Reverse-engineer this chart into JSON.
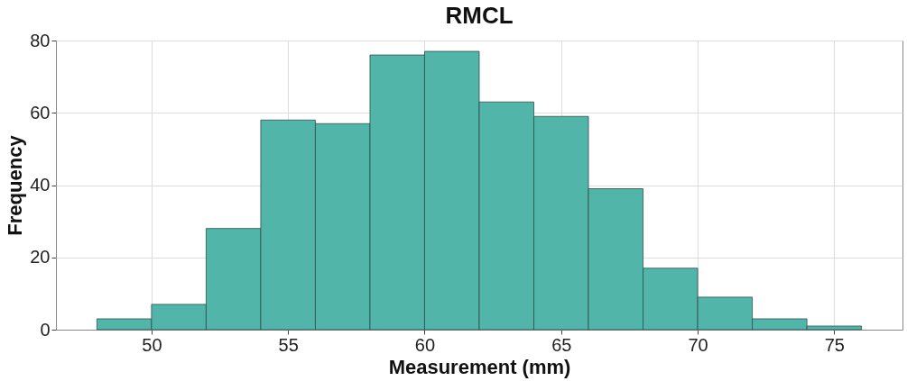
{
  "chart_data": {
    "type": "histogram",
    "title": "RMCL",
    "xlabel": "Measurement (mm)",
    "ylabel": "Frequency",
    "bins": [
      48,
      50,
      52,
      54,
      56,
      58,
      60,
      62,
      64,
      66,
      68,
      70,
      72,
      74,
      76
    ],
    "values": [
      3,
      7,
      28,
      58,
      57,
      76,
      77,
      63,
      59,
      39,
      17,
      9,
      3,
      1
    ],
    "color": "#52b5a9",
    "xlim": [
      46.5,
      77.5
    ],
    "xticks": [
      50,
      55,
      60,
      65,
      70,
      75
    ],
    "ylim": [
      0,
      80
    ],
    "yticks": [
      0,
      20,
      40,
      60,
      80
    ],
    "grid": true
  }
}
